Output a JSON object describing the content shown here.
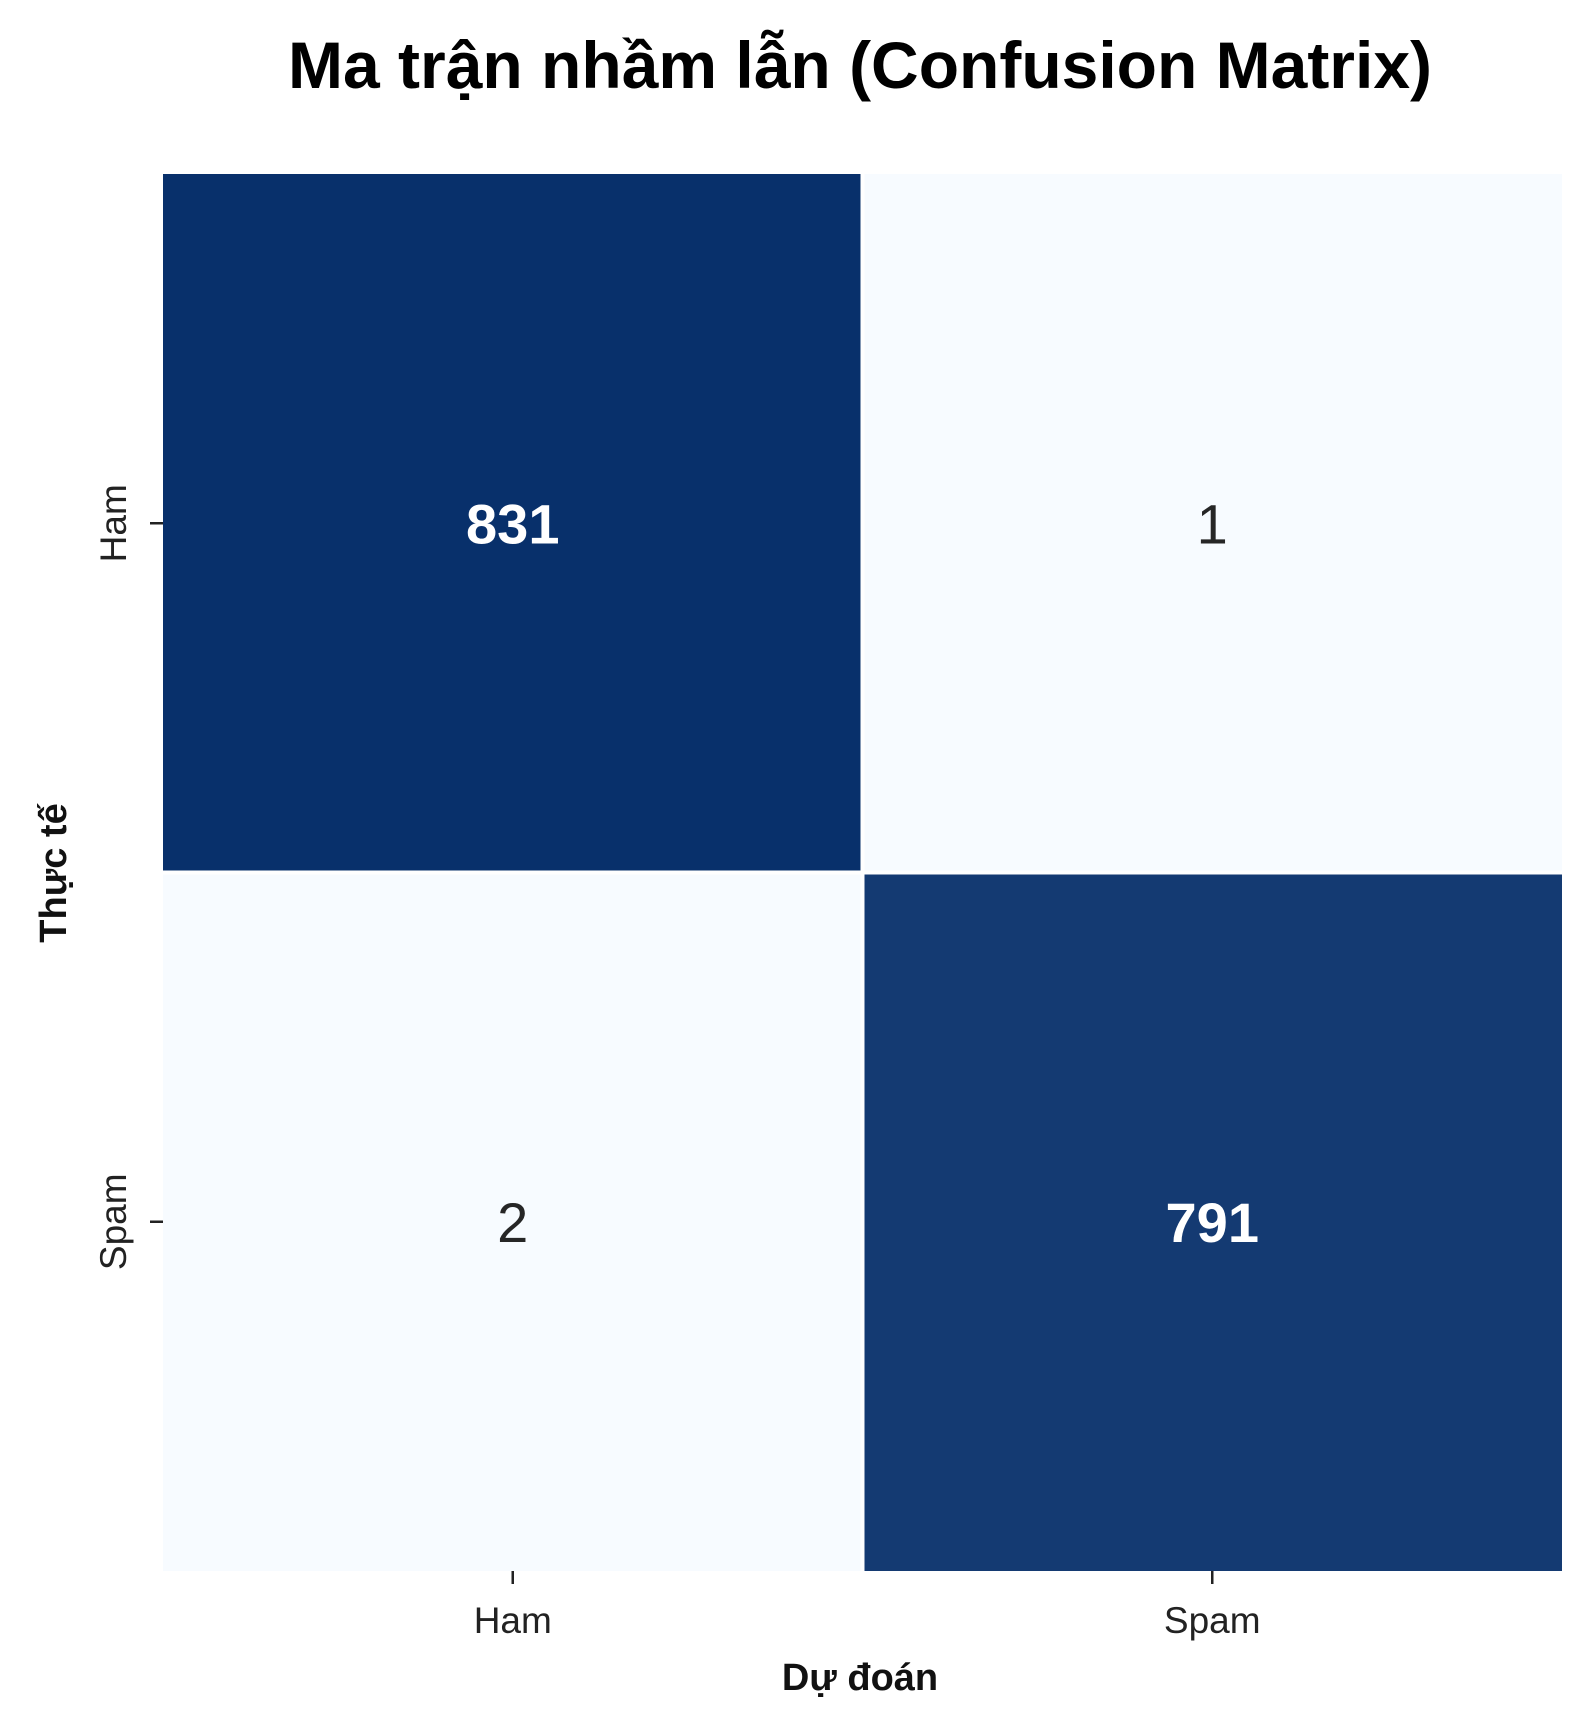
{
  "chart_data": {
    "type": "heatmap",
    "title": "Ma trận nhầm lẫn (Confusion Matrix)",
    "xlabel": "Dự đoán",
    "ylabel": "Thực tế",
    "x_categories": [
      "Ham",
      "Spam"
    ],
    "y_categories": [
      "Ham",
      "Spam"
    ],
    "values": [
      [
        831,
        1
      ],
      [
        2,
        791
      ]
    ],
    "colormap": "Blues",
    "color_low": "#f7fbff",
    "color_high": "#08306b",
    "annotations": true,
    "colorbar": false,
    "grid": false
  }
}
